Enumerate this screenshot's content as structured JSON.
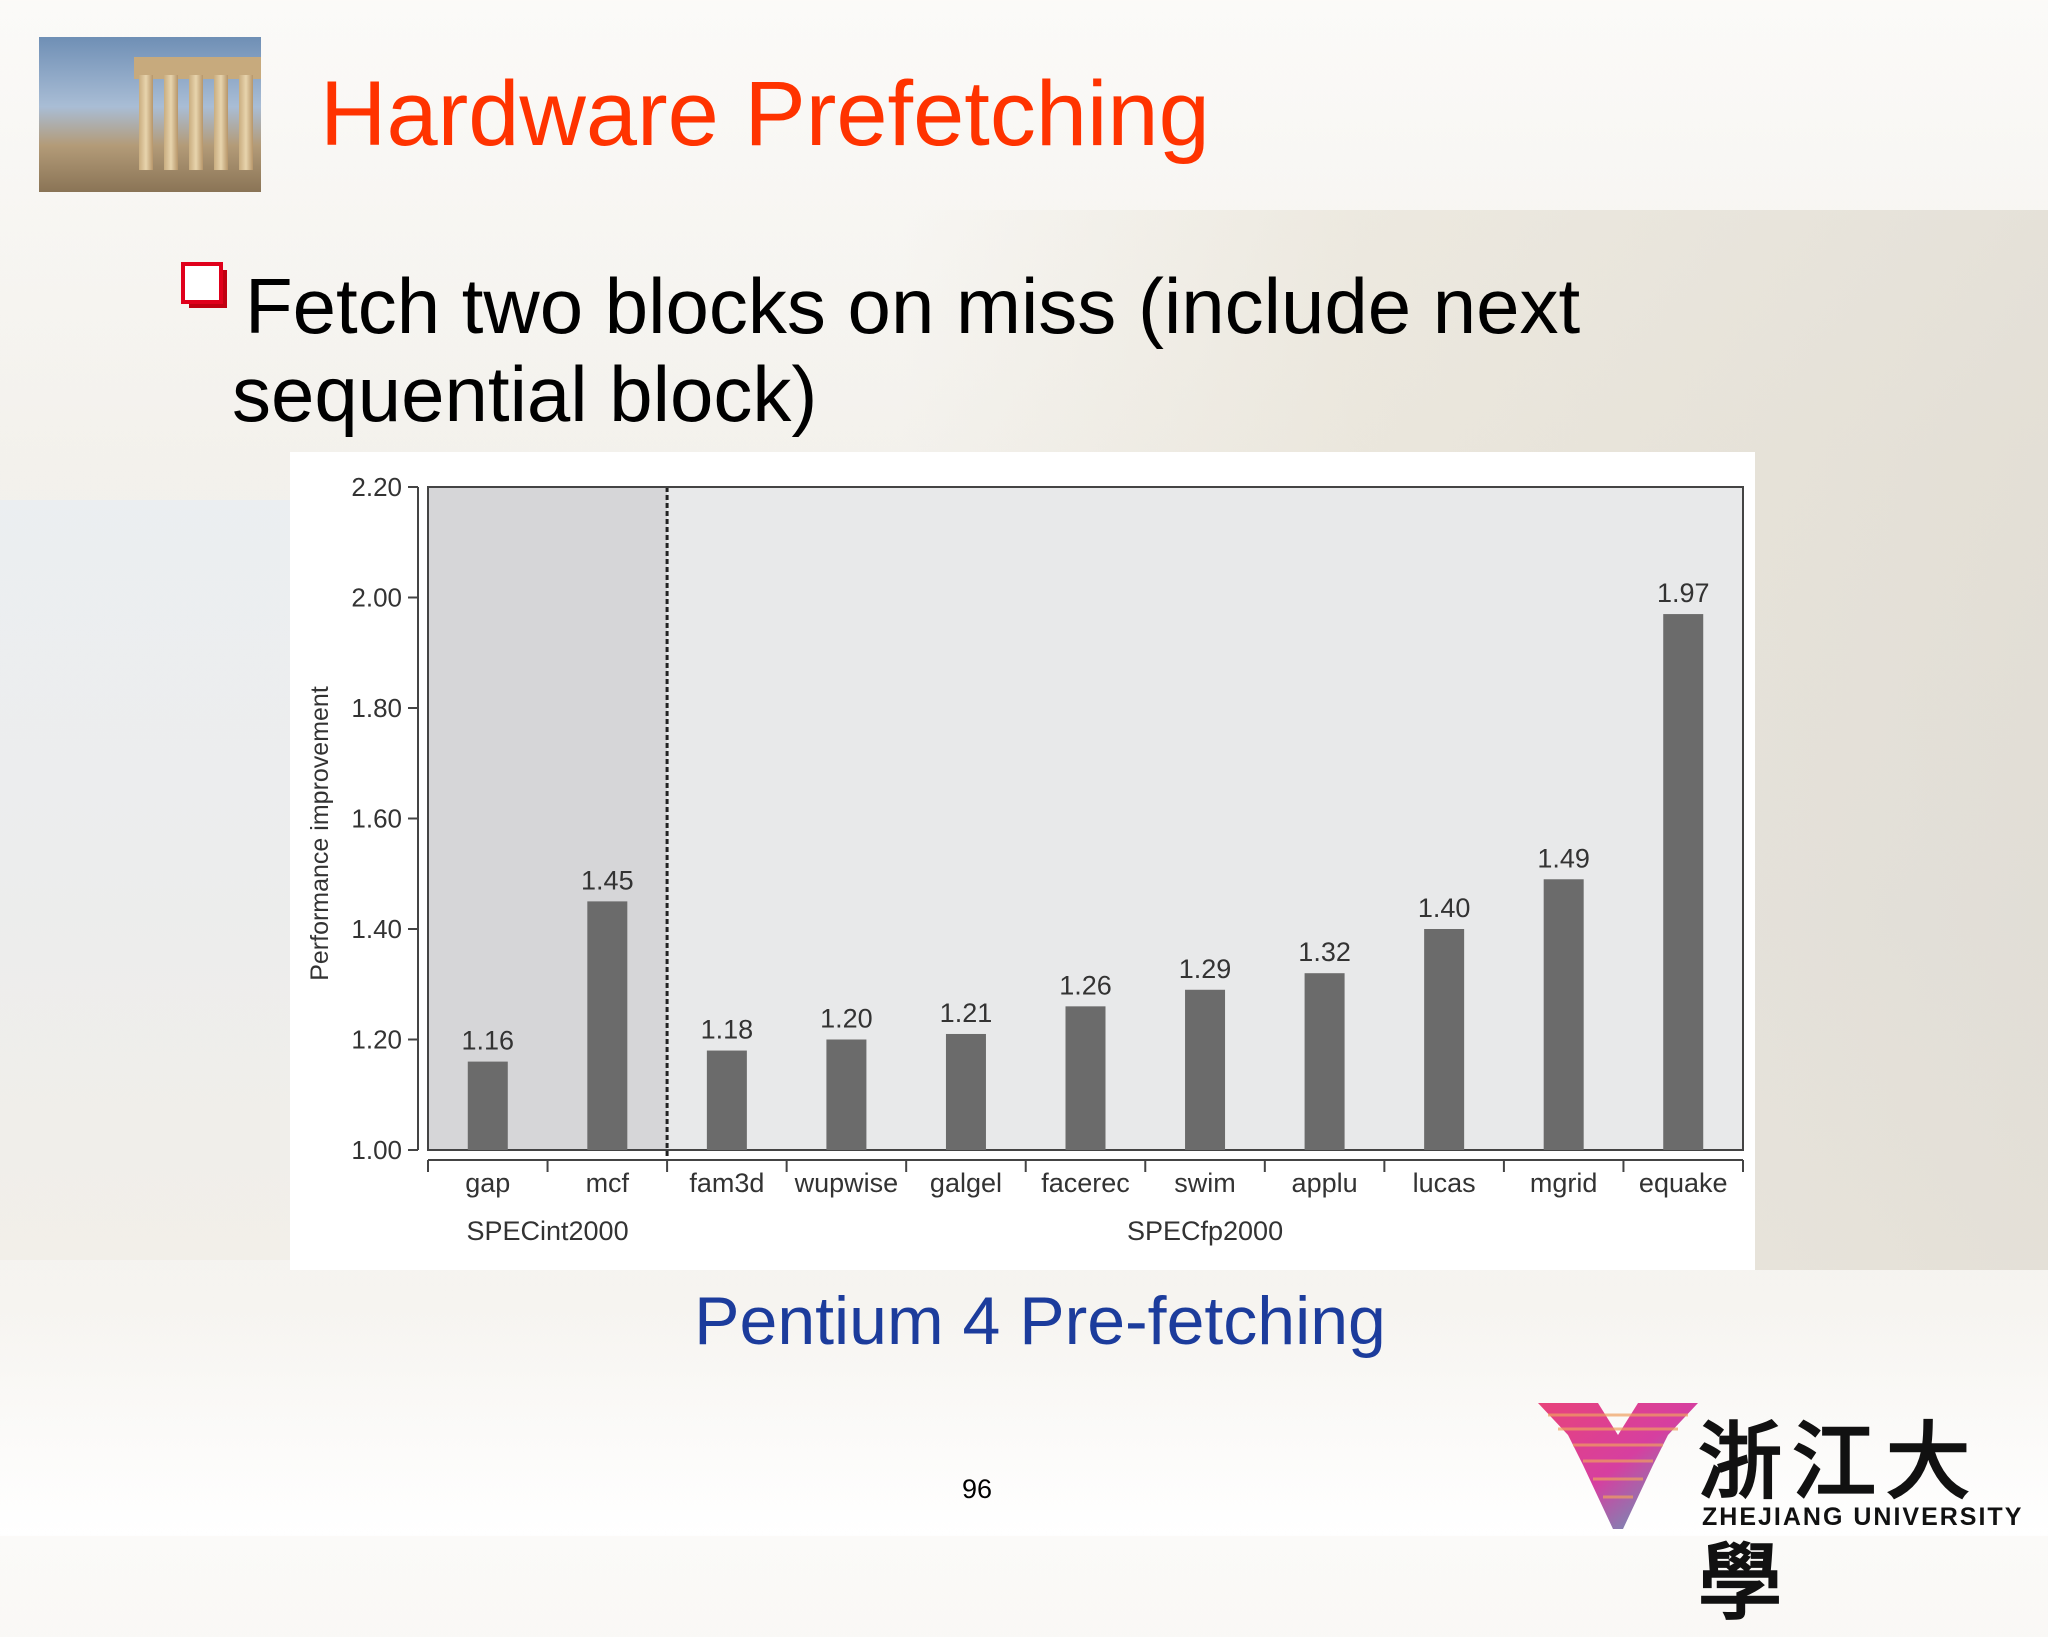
{
  "slide": {
    "title": "Hardware Prefetching",
    "bullet_line1": "Fetch two blocks on miss (include next",
    "bullet_line2": "sequential block)",
    "caption": "Pentium 4 Pre-fetching",
    "page_number": "96",
    "title_color": "#ff3300",
    "caption_color": "#1c3c9c"
  },
  "logo": {
    "chinese": "浙江大學",
    "english": "ZHEJIANG UNIVERSITY"
  },
  "chart_data": {
    "type": "bar",
    "ylabel": "Performance improvement",
    "xlabel": "",
    "ylim": [
      1.0,
      2.2
    ],
    "yticks": [
      "1.00",
      "1.20",
      "1.40",
      "1.60",
      "1.80",
      "2.00",
      "2.20"
    ],
    "categories": [
      "gap",
      "mcf",
      "fam3d",
      "wupwise",
      "galgel",
      "facerec",
      "swim",
      "applu",
      "lucas",
      "mgrid",
      "equake"
    ],
    "values": [
      1.16,
      1.45,
      1.18,
      1.2,
      1.21,
      1.26,
      1.29,
      1.32,
      1.4,
      1.49,
      1.97
    ],
    "value_labels": [
      "1.16",
      "1.45",
      "1.18",
      "1.20",
      "1.21",
      "1.26",
      "1.29",
      "1.32",
      "1.40",
      "1.49",
      "1.97"
    ],
    "groups": [
      {
        "name": "SPECint2000",
        "count": 2
      },
      {
        "name": "SPECfp2000",
        "count": 9
      }
    ],
    "grid": false,
    "bar_color": "#6b6b6b",
    "group_backgrounds": [
      "#d6d6d8",
      "#e8e9ea"
    ]
  }
}
